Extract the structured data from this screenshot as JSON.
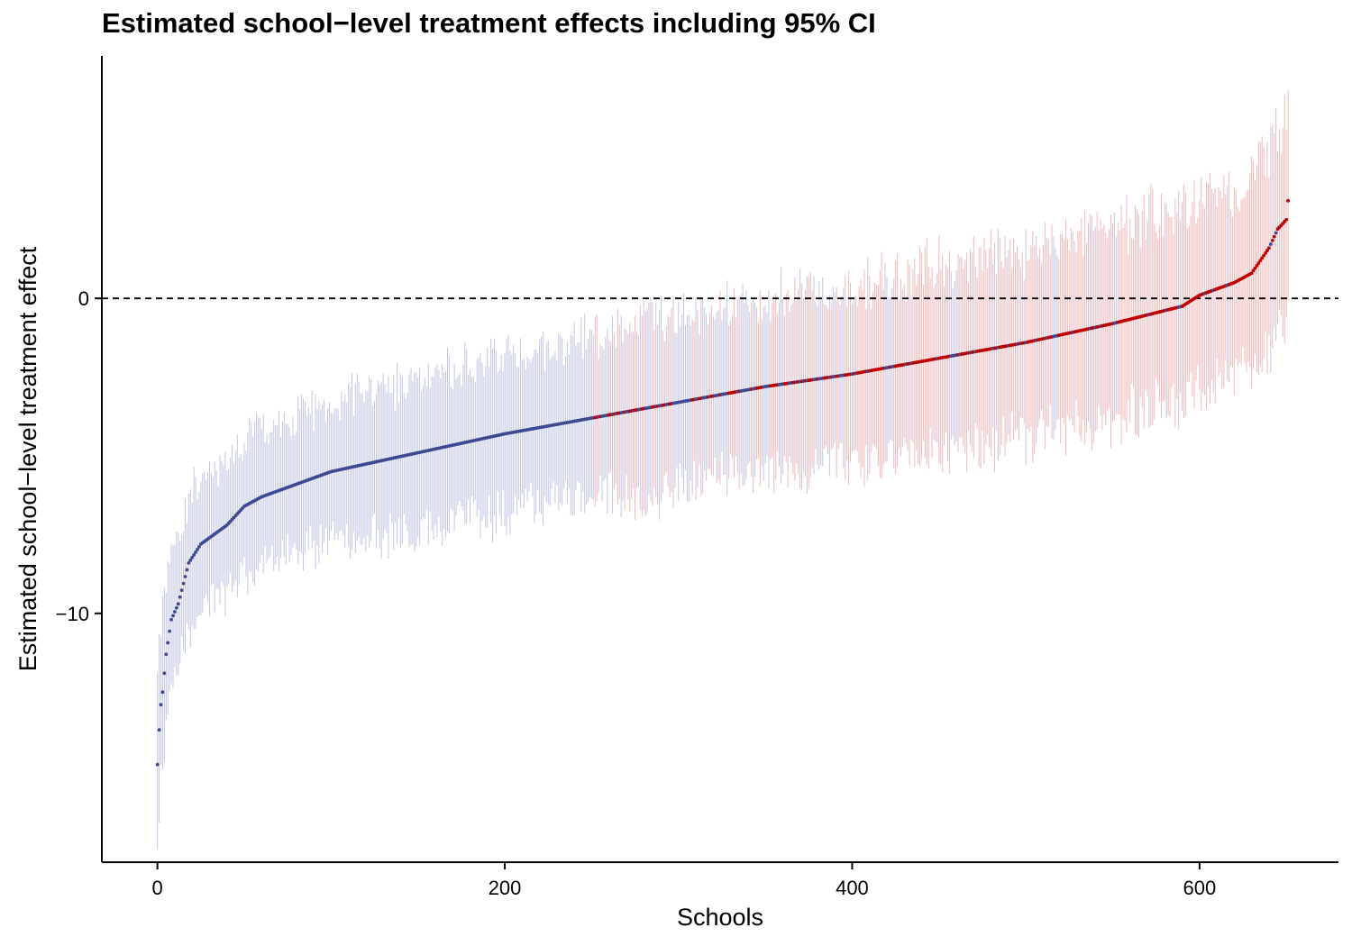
{
  "chart_data": {
    "type": "scatter",
    "title": "Estimated school−level treatment effects including 95% CI",
    "xlabel": "Schools",
    "ylabel": "Estimated school−level treatment effect",
    "xlim": [
      -32,
      680
    ],
    "ylim": [
      -17.9,
      7.7
    ],
    "x_ticks": [
      0,
      200,
      400,
      600
    ],
    "x_tick_labels": [
      "0",
      "200",
      "400",
      "600"
    ],
    "y_ticks": [
      -10,
      0
    ],
    "y_tick_labels": [
      "−10",
      "0"
    ],
    "reference_line": {
      "y": 0,
      "style": "dashed"
    },
    "grid": false,
    "legend": "none",
    "colors": {
      "group_a_point": "#3d4a93",
      "group_a_interval": "#c3c7e3",
      "group_b_point": "#c00000",
      "group_b_interval": "#f2b9b9",
      "reference_line": "#000000"
    },
    "n_schools": 652,
    "estimate_anchors": {
      "rank": [
        0,
        1,
        2,
        3,
        5,
        8,
        12,
        18,
        25,
        40,
        50,
        60,
        80,
        100,
        150,
        200,
        250,
        300,
        350,
        400,
        450,
        500,
        550,
        590,
        600,
        620,
        630,
        640,
        645,
        650,
        651
      ],
      "estimate": [
        -14.8,
        -13.7,
        -12.9,
        -12.5,
        -11.3,
        -10.2,
        -9.7,
        -8.4,
        -7.8,
        -7.2,
        -6.6,
        -6.3,
        -5.9,
        -5.5,
        -4.9,
        -4.3,
        -3.8,
        -3.3,
        -2.8,
        -2.4,
        -1.9,
        -1.4,
        -0.8,
        -0.25,
        0.1,
        0.5,
        0.8,
        1.6,
        2.2,
        2.5,
        3.1
      ]
    },
    "ci_half_width_anchors": {
      "rank": [
        0,
        5,
        10,
        30,
        80,
        200,
        350,
        500,
        600,
        651
      ],
      "half_width": [
        2.6,
        2.3,
        2.1,
        2.1,
        2.2,
        2.5,
        2.8,
        3.0,
        3.1,
        3.2
      ]
    },
    "group_b_share_by_rank": {
      "rank": [
        0,
        240,
        250,
        320,
        380,
        430,
        651
      ],
      "share": [
        0.0,
        0.0,
        0.3,
        0.45,
        0.6,
        0.82,
        0.85
      ]
    }
  }
}
